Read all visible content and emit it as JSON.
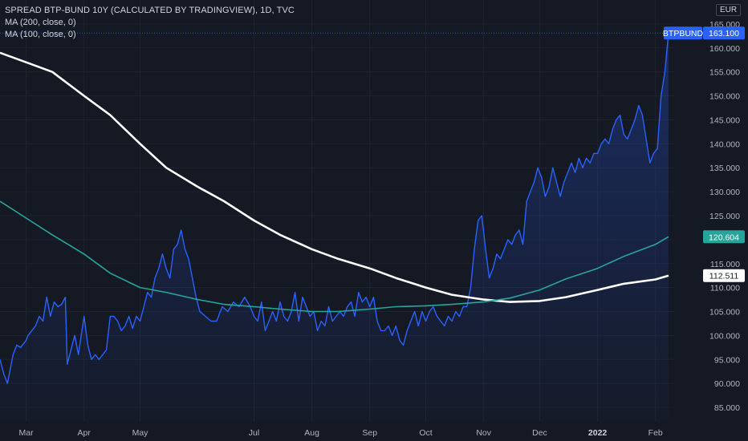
{
  "legend": {
    "title": "SPREAD BTP-BUND 10Y (CALCULATED BY TRADINGVIEW), 1D, TVC",
    "ma200": "MA (200, close, 0)",
    "ma100": "MA (100, close, 0)"
  },
  "currency": "EUR",
  "colors": {
    "background": "#151924",
    "price": "#2962ff",
    "ma200": "#ffffff",
    "ma100": "#26a69a",
    "grid": "#1f2330"
  },
  "chart_data": {
    "type": "line",
    "x_range": [
      "2021-02-15",
      "2022-02-11"
    ],
    "ylim": [
      82,
      170
    ],
    "y_ticks": [
      85,
      90,
      95,
      100,
      105,
      110,
      115,
      120,
      125,
      130,
      135,
      140,
      145,
      150,
      155,
      160,
      165
    ],
    "x_ticks": [
      {
        "label": "Mar",
        "date": "2021-03-01"
      },
      {
        "label": "Apr",
        "date": "2021-04-01"
      },
      {
        "label": "May",
        "date": "2021-05-01"
      },
      {
        "label": "Jul",
        "date": "2021-07-01"
      },
      {
        "label": "Aug",
        "date": "2021-08-01"
      },
      {
        "label": "Sep",
        "date": "2021-09-01"
      },
      {
        "label": "Oct",
        "date": "2021-10-01"
      },
      {
        "label": "Nov",
        "date": "2021-11-01"
      },
      {
        "label": "Dec",
        "date": "2021-12-01"
      },
      {
        "label": "2022",
        "date": "2022-01-01",
        "bold": true
      },
      {
        "label": "Feb",
        "date": "2022-02-01"
      }
    ],
    "series": [
      {
        "name": "BTPBUND",
        "last_label": "163.100",
        "points": [
          [
            "2021-02-15",
            95
          ],
          [
            "2021-02-17",
            92
          ],
          [
            "2021-02-19",
            90
          ],
          [
            "2021-02-22",
            96
          ],
          [
            "2021-02-24",
            98
          ],
          [
            "2021-02-26",
            97.5
          ],
          [
            "2021-03-01",
            99
          ],
          [
            "2021-03-02",
            100
          ],
          [
            "2021-03-04",
            101
          ],
          [
            "2021-03-06",
            102
          ],
          [
            "2021-03-08",
            104
          ],
          [
            "2021-03-10",
            103
          ],
          [
            "2021-03-12",
            108
          ],
          [
            "2021-03-14",
            104
          ],
          [
            "2021-03-16",
            107
          ],
          [
            "2021-03-18",
            106
          ],
          [
            "2021-03-20",
            106.5
          ],
          [
            "2021-03-22",
            108
          ],
          [
            "2021-03-23",
            94
          ],
          [
            "2021-03-25",
            97
          ],
          [
            "2021-03-27",
            100
          ],
          [
            "2021-03-29",
            96
          ],
          [
            "2021-04-01",
            104
          ],
          [
            "2021-04-03",
            98
          ],
          [
            "2021-04-05",
            95
          ],
          [
            "2021-04-07",
            96
          ],
          [
            "2021-04-09",
            95
          ],
          [
            "2021-04-11",
            96
          ],
          [
            "2021-04-13",
            97
          ],
          [
            "2021-04-15",
            104
          ],
          [
            "2021-04-17",
            104
          ],
          [
            "2021-04-19",
            103
          ],
          [
            "2021-04-21",
            101
          ],
          [
            "2021-04-23",
            102
          ],
          [
            "2021-04-25",
            104
          ],
          [
            "2021-04-27",
            101.5
          ],
          [
            "2021-04-29",
            104
          ],
          [
            "2021-05-01",
            103
          ],
          [
            "2021-05-03",
            106
          ],
          [
            "2021-05-05",
            109
          ],
          [
            "2021-05-07",
            108
          ],
          [
            "2021-05-09",
            112
          ],
          [
            "2021-05-11",
            114
          ],
          [
            "2021-05-13",
            117
          ],
          [
            "2021-05-15",
            114
          ],
          [
            "2021-05-17",
            112
          ],
          [
            "2021-05-19",
            118
          ],
          [
            "2021-05-21",
            119
          ],
          [
            "2021-05-23",
            122
          ],
          [
            "2021-05-25",
            118
          ],
          [
            "2021-05-27",
            116
          ],
          [
            "2021-05-29",
            112
          ],
          [
            "2021-05-31",
            108
          ],
          [
            "2021-06-02",
            105
          ],
          [
            "2021-06-05",
            104
          ],
          [
            "2021-06-08",
            103
          ],
          [
            "2021-06-11",
            103
          ],
          [
            "2021-06-14",
            106
          ],
          [
            "2021-06-17",
            105
          ],
          [
            "2021-06-20",
            107
          ],
          [
            "2021-06-23",
            106
          ],
          [
            "2021-06-26",
            108
          ],
          [
            "2021-06-29",
            106
          ],
          [
            "2021-07-01",
            104
          ],
          [
            "2021-07-03",
            103
          ],
          [
            "2021-07-05",
            107
          ],
          [
            "2021-07-07",
            101
          ],
          [
            "2021-07-09",
            103
          ],
          [
            "2021-07-11",
            105
          ],
          [
            "2021-07-13",
            103
          ],
          [
            "2021-07-15",
            107
          ],
          [
            "2021-07-17",
            104
          ],
          [
            "2021-07-19",
            103
          ],
          [
            "2021-07-21",
            105
          ],
          [
            "2021-07-23",
            109
          ],
          [
            "2021-07-25",
            103
          ],
          [
            "2021-07-27",
            108
          ],
          [
            "2021-07-29",
            106
          ],
          [
            "2021-07-31",
            104
          ],
          [
            "2021-08-02",
            105
          ],
          [
            "2021-08-04",
            101
          ],
          [
            "2021-08-06",
            103
          ],
          [
            "2021-08-08",
            102
          ],
          [
            "2021-08-10",
            106
          ],
          [
            "2021-08-12",
            103
          ],
          [
            "2021-08-14",
            104
          ],
          [
            "2021-08-16",
            105
          ],
          [
            "2021-08-18",
            104
          ],
          [
            "2021-08-20",
            106
          ],
          [
            "2021-08-22",
            107
          ],
          [
            "2021-08-24",
            104
          ],
          [
            "2021-08-26",
            109
          ],
          [
            "2021-08-28",
            107
          ],
          [
            "2021-08-30",
            108
          ],
          [
            "2021-09-01",
            106
          ],
          [
            "2021-09-03",
            108
          ],
          [
            "2021-09-05",
            103
          ],
          [
            "2021-09-07",
            101
          ],
          [
            "2021-09-09",
            101
          ],
          [
            "2021-09-11",
            102
          ],
          [
            "2021-09-13",
            100
          ],
          [
            "2021-09-15",
            102
          ],
          [
            "2021-09-17",
            99
          ],
          [
            "2021-09-19",
            98
          ],
          [
            "2021-09-21",
            101
          ],
          [
            "2021-09-23",
            103
          ],
          [
            "2021-09-25",
            105
          ],
          [
            "2021-09-27",
            102
          ],
          [
            "2021-09-29",
            105
          ],
          [
            "2021-10-01",
            103
          ],
          [
            "2021-10-03",
            105
          ],
          [
            "2021-10-05",
            106
          ],
          [
            "2021-10-07",
            104
          ],
          [
            "2021-10-09",
            103
          ],
          [
            "2021-10-11",
            102
          ],
          [
            "2021-10-13",
            104
          ],
          [
            "2021-10-15",
            103
          ],
          [
            "2021-10-17",
            105
          ],
          [
            "2021-10-19",
            104
          ],
          [
            "2021-10-21",
            106
          ],
          [
            "2021-10-23",
            106
          ],
          [
            "2021-10-25",
            110
          ],
          [
            "2021-10-27",
            118
          ],
          [
            "2021-10-29",
            124
          ],
          [
            "2021-10-31",
            125
          ],
          [
            "2021-11-02",
            118
          ],
          [
            "2021-11-04",
            112
          ],
          [
            "2021-11-06",
            114
          ],
          [
            "2021-11-08",
            117
          ],
          [
            "2021-11-10",
            116
          ],
          [
            "2021-11-12",
            118
          ],
          [
            "2021-11-14",
            120
          ],
          [
            "2021-11-16",
            119
          ],
          [
            "2021-11-18",
            121
          ],
          [
            "2021-11-20",
            122
          ],
          [
            "2021-11-22",
            119
          ],
          [
            "2021-11-24",
            128
          ],
          [
            "2021-11-26",
            130
          ],
          [
            "2021-11-28",
            132
          ],
          [
            "2021-11-30",
            135
          ],
          [
            "2021-12-02",
            133
          ],
          [
            "2021-12-04",
            129
          ],
          [
            "2021-12-06",
            131
          ],
          [
            "2021-12-08",
            135
          ],
          [
            "2021-12-10",
            132
          ],
          [
            "2021-12-12",
            129
          ],
          [
            "2021-12-14",
            132
          ],
          [
            "2021-12-16",
            134
          ],
          [
            "2021-12-18",
            136
          ],
          [
            "2021-12-20",
            134
          ],
          [
            "2021-12-22",
            137
          ],
          [
            "2021-12-24",
            135
          ],
          [
            "2021-12-26",
            137
          ],
          [
            "2021-12-28",
            136
          ],
          [
            "2021-12-30",
            138
          ],
          [
            "2022-01-01",
            138
          ],
          [
            "2022-01-03",
            140
          ],
          [
            "2022-01-05",
            141
          ],
          [
            "2022-01-07",
            140
          ],
          [
            "2022-01-09",
            143
          ],
          [
            "2022-01-11",
            145
          ],
          [
            "2022-01-13",
            146
          ],
          [
            "2022-01-15",
            142
          ],
          [
            "2022-01-17",
            141
          ],
          [
            "2022-01-19",
            143
          ],
          [
            "2022-01-21",
            145
          ],
          [
            "2022-01-23",
            148
          ],
          [
            "2022-01-25",
            146
          ],
          [
            "2022-01-27",
            141
          ],
          [
            "2022-01-29",
            136
          ],
          [
            "2022-01-31",
            138
          ],
          [
            "2022-02-02",
            139
          ],
          [
            "2022-02-04",
            150
          ],
          [
            "2022-02-06",
            155
          ],
          [
            "2022-02-08",
            163.1
          ]
        ]
      },
      {
        "name": "MA (200, close, 0)",
        "last_label": "112.511",
        "points": [
          [
            "2021-02-15",
            159
          ],
          [
            "2021-03-01",
            157
          ],
          [
            "2021-03-15",
            155
          ],
          [
            "2021-04-01",
            150
          ],
          [
            "2021-04-15",
            146
          ],
          [
            "2021-05-01",
            140
          ],
          [
            "2021-05-15",
            135
          ],
          [
            "2021-06-01",
            131
          ],
          [
            "2021-06-15",
            128
          ],
          [
            "2021-07-01",
            124
          ],
          [
            "2021-07-15",
            121
          ],
          [
            "2021-08-01",
            118
          ],
          [
            "2021-08-15",
            116
          ],
          [
            "2021-09-01",
            114
          ],
          [
            "2021-09-15",
            112
          ],
          [
            "2021-10-01",
            110
          ],
          [
            "2021-10-15",
            108.5
          ],
          [
            "2021-11-01",
            107.5
          ],
          [
            "2021-11-15",
            107
          ],
          [
            "2021-12-01",
            107.2
          ],
          [
            "2021-12-15",
            108
          ],
          [
            "2022-01-01",
            109.5
          ],
          [
            "2022-01-15",
            110.8
          ],
          [
            "2022-02-01",
            111.7
          ],
          [
            "2022-02-08",
            112.5
          ]
        ]
      },
      {
        "name": "MA (100, close, 0)",
        "last_label": "120.604",
        "points": [
          [
            "2021-02-15",
            128
          ],
          [
            "2021-03-01",
            124.5
          ],
          [
            "2021-03-15",
            121
          ],
          [
            "2021-04-01",
            117
          ],
          [
            "2021-04-15",
            113
          ],
          [
            "2021-05-01",
            110
          ],
          [
            "2021-05-15",
            109
          ],
          [
            "2021-06-01",
            107.5
          ],
          [
            "2021-06-15",
            106.5
          ],
          [
            "2021-07-01",
            106
          ],
          [
            "2021-07-15",
            105.5
          ],
          [
            "2021-08-01",
            105
          ],
          [
            "2021-08-15",
            105
          ],
          [
            "2021-09-01",
            105.5
          ],
          [
            "2021-09-15",
            106
          ],
          [
            "2021-10-01",
            106.2
          ],
          [
            "2021-10-15",
            106.5
          ],
          [
            "2021-11-01",
            107
          ],
          [
            "2021-11-15",
            107.8
          ],
          [
            "2021-12-01",
            109.5
          ],
          [
            "2021-12-15",
            111.8
          ],
          [
            "2022-01-01",
            114
          ],
          [
            "2022-01-15",
            116.5
          ],
          [
            "2022-02-01",
            119
          ],
          [
            "2022-02-08",
            120.6
          ]
        ]
      }
    ]
  }
}
